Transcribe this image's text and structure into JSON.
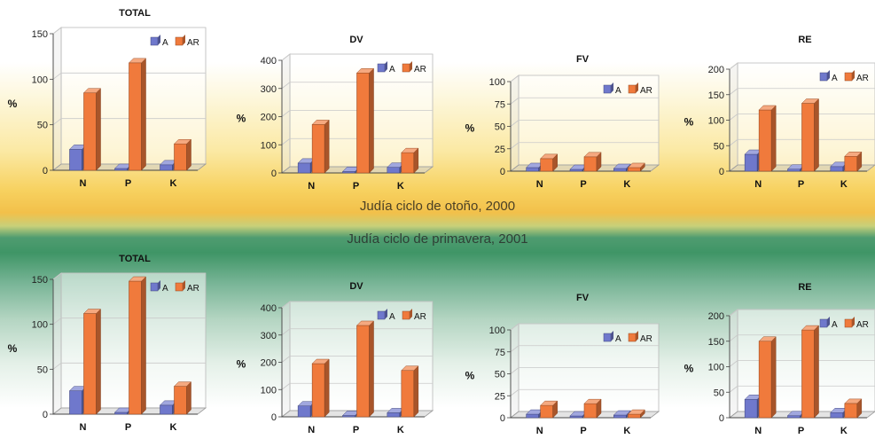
{
  "season_labels": {
    "autumn": "Judía ciclo de otoño, 2000",
    "spring": "Judía ciclo de primavera, 2001"
  },
  "colors": {
    "A": "#6f78cc",
    "AR": "#f07a3c"
  },
  "chart_data": [
    {
      "type": "bar",
      "title": "TOTAL",
      "ylabel": "%",
      "categories": [
        "N",
        "P",
        "K"
      ],
      "series": [
        {
          "name": "A",
          "values": [
            23,
            2,
            6
          ]
        },
        {
          "name": "AR",
          "values": [
            85,
            118,
            29
          ]
        }
      ],
      "ylim": [
        0,
        150
      ],
      "yticks": [
        0,
        50,
        100,
        150
      ],
      "legend": "top-right"
    },
    {
      "type": "bar",
      "title": "DV",
      "ylabel": "%",
      "categories": [
        "N",
        "P",
        "K"
      ],
      "series": [
        {
          "name": "A",
          "values": [
            35,
            5,
            20
          ]
        },
        {
          "name": "AR",
          "values": [
            172,
            355,
            72
          ]
        }
      ],
      "ylim": [
        0,
        400
      ],
      "yticks": [
        0,
        100,
        200,
        300,
        400
      ],
      "legend": "top-right"
    },
    {
      "type": "bar",
      "title": "FV",
      "ylabel": "%",
      "categories": [
        "N",
        "P",
        "K"
      ],
      "series": [
        {
          "name": "A",
          "values": [
            4,
            2,
            3
          ]
        },
        {
          "name": "AR",
          "values": [
            14,
            16,
            4
          ]
        }
      ],
      "ylim": [
        0,
        100
      ],
      "yticks": [
        0,
        25,
        50,
        75,
        100
      ],
      "legend": "top-right"
    },
    {
      "type": "bar",
      "title": "RE",
      "ylabel": "%",
      "categories": [
        "N",
        "P",
        "K"
      ],
      "series": [
        {
          "name": "A",
          "values": [
            33,
            4,
            9
          ]
        },
        {
          "name": "AR",
          "values": [
            120,
            133,
            29
          ]
        }
      ],
      "ylim": [
        0,
        200
      ],
      "yticks": [
        0,
        50,
        100,
        150,
        200
      ],
      "legend": "top-right"
    },
    {
      "type": "bar",
      "title": "TOTAL",
      "ylabel": "%",
      "categories": [
        "N",
        "P",
        "K"
      ],
      "series": [
        {
          "name": "A",
          "values": [
            26,
            2,
            10
          ]
        },
        {
          "name": "AR",
          "values": [
            112,
            148,
            31
          ]
        }
      ],
      "ylim": [
        0,
        150
      ],
      "yticks": [
        0,
        50,
        100,
        150
      ],
      "legend": "top-right"
    },
    {
      "type": "bar",
      "title": "DV",
      "ylabel": "%",
      "categories": [
        "N",
        "P",
        "K"
      ],
      "series": [
        {
          "name": "A",
          "values": [
            40,
            4,
            15
          ]
        },
        {
          "name": "AR",
          "values": [
            195,
            335,
            170
          ]
        }
      ],
      "ylim": [
        0,
        400
      ],
      "yticks": [
        0,
        100,
        200,
        300,
        400
      ],
      "legend": "top-right"
    },
    {
      "type": "bar",
      "title": "FV",
      "ylabel": "%",
      "categories": [
        "N",
        "P",
        "K"
      ],
      "series": [
        {
          "name": "A",
          "values": [
            4,
            2,
            3
          ]
        },
        {
          "name": "AR",
          "values": [
            14,
            16,
            4
          ]
        }
      ],
      "ylim": [
        0,
        100
      ],
      "yticks": [
        0,
        25,
        50,
        75,
        100
      ],
      "legend": "top-right"
    },
    {
      "type": "bar",
      "title": "RE",
      "ylabel": "%",
      "categories": [
        "N",
        "P",
        "K"
      ],
      "series": [
        {
          "name": "A",
          "values": [
            36,
            4,
            10
          ]
        },
        {
          "name": "AR",
          "values": [
            150,
            172,
            28
          ]
        }
      ],
      "ylim": [
        0,
        200
      ],
      "yticks": [
        0,
        50,
        100,
        150,
        200
      ],
      "legend": "top-right"
    }
  ]
}
